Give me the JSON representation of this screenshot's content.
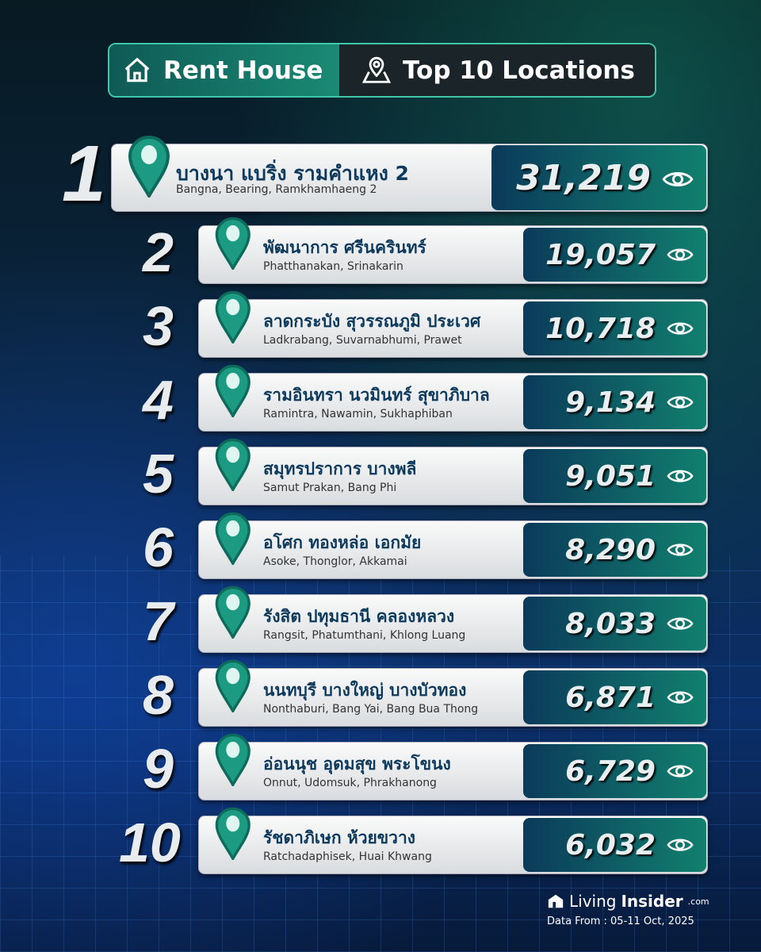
{
  "header": {
    "left_label": "Rent House",
    "left_icon": "house-icon",
    "right_label": "Top 10 Locations",
    "right_icon": "map-pin-icon"
  },
  "items": [
    {
      "rank": "1",
      "thai": "บางนา แบริ่ง รามคำแหง 2",
      "english": "Bangna, Bearing, Ramkhamhaeng 2",
      "views": "31,219"
    },
    {
      "rank": "2",
      "thai": "พัฒนาการ ศรีนครินทร์",
      "english": "Phatthanakan, Srinakarin",
      "views": "19,057"
    },
    {
      "rank": "3",
      "thai": "ลาดกระบัง สุวรรณภูมิ ประเวศ",
      "english": "Ladkrabang, Suvarnabhumi, Prawet",
      "views": "10,718"
    },
    {
      "rank": "4",
      "thai": "รามอินทรา นวมินทร์ สุขาภิบาล",
      "english": "Ramintra, Nawamin, Sukhaphiban",
      "views": "9,134"
    },
    {
      "rank": "5",
      "thai": "สมุทรปราการ บางพลี",
      "english": "Samut Prakan, Bang Phi",
      "views": "9,051"
    },
    {
      "rank": "6",
      "thai": "อโศก ทองหล่อ เอกมัย",
      "english": "Asoke, Thonglor, Akkamai",
      "views": "8,290"
    },
    {
      "rank": "7",
      "thai": "รังสิต ปทุมธานี คลองหลวง",
      "english": "Rangsit, Phatumthani, Khlong Luang",
      "views": "8,033"
    },
    {
      "rank": "8",
      "thai": "นนทบุรี บางใหญ่ บางบัวทอง",
      "english": "Nonthaburi, Bang Yai, Bang Bua Thong",
      "views": "6,871"
    },
    {
      "rank": "9",
      "thai": "อ่อนนุช อุดมสุข พระโขนง",
      "english": "Onnut, Udomsuk, Phrakhanong",
      "views": "6,729"
    },
    {
      "rank": "10",
      "thai": "รัชดาภิเษก ห้วยขวาง",
      "english": "Ratchadaphisek, Huai Khwang",
      "views": "6,032"
    }
  ],
  "footer": {
    "brand_light": "Living",
    "brand_bold": "Insider",
    "brand_suffix": ".com",
    "data_from": "Data From : 05-11 Oct, 2025"
  },
  "colors": {
    "accent": "#1a8a74",
    "title_text": "#0d3a5c",
    "value_box_start": "#0b3a5a",
    "value_box_end": "#11806e"
  }
}
